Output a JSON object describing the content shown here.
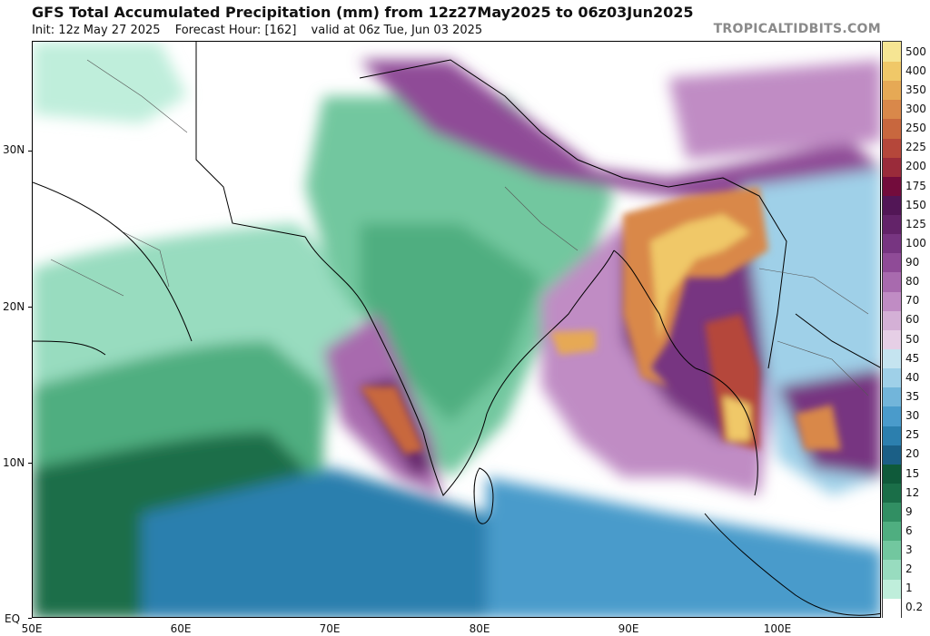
{
  "header": {
    "title": "GFS Total Accumulated Precipitation (mm) from 12z27May2025 to 06z03Jun2025",
    "init": "Init: 12z May 27 2025",
    "forecast_hour": "Forecast Hour: [162]",
    "valid": "valid at 06z Tue, Jun 03 2025",
    "watermark": "TROPICALTIDBITS.COM"
  },
  "axes": {
    "lat_labels": [
      "30N",
      "20N",
      "10N",
      "EQ"
    ],
    "lon_labels": [
      "50E",
      "60E",
      "70E",
      "80E",
      "90E",
      "100E"
    ]
  },
  "colorbar": {
    "levels": [
      "0.2",
      "1",
      "2",
      "3",
      "6",
      "9",
      "12",
      "15",
      "20",
      "25",
      "30",
      "35",
      "40",
      "45",
      "50",
      "60",
      "70",
      "80",
      "90",
      "100",
      "125",
      "150",
      "175",
      "200",
      "225",
      "250",
      "300",
      "350",
      "400",
      "500"
    ],
    "colors": [
      "#ffffff",
      "#bfeedb",
      "#98dcbf",
      "#72c79f",
      "#4fae80",
      "#318f63",
      "#1a6e48",
      "#0f5a3a",
      "#1b5f86",
      "#2c7fae",
      "#4a9bcb",
      "#72b5da",
      "#9fd0e8",
      "#c5e4f0",
      "#e6cfe6",
      "#d4b0d6",
      "#c08cc4",
      "#a86aae",
      "#8f4b97",
      "#773581",
      "#632369",
      "#521656",
      "#730c3c",
      "#9a2b3a",
      "#b5473a",
      "#c8673e",
      "#d9884a",
      "#e6a955",
      "#f0c868",
      "#f6e593"
    ]
  }
}
